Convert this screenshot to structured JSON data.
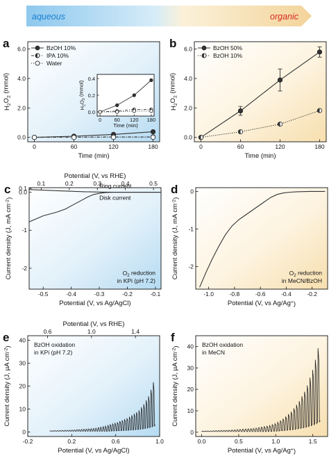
{
  "banner": {
    "left_label": "aqueous",
    "right_label": "organic"
  },
  "panels": [
    {
      "id": "a",
      "label": "a",
      "chart_data": {
        "type": "line",
        "xlabel": "Time (min)",
        "ylabel": "H2O2 (mmol)",
        "xlim": [
          -10,
          190
        ],
        "ylim": [
          -0.3,
          6.5
        ],
        "xticks": [
          0,
          60,
          120,
          180
        ],
        "yticks": [
          0.0,
          2.0,
          4.0,
          6.0
        ],
        "ytick_labels": [
          "0.0",
          "2.0",
          "4.0",
          "6.0"
        ],
        "legend_position": "top-left",
        "series": [
          {
            "name": "BzOH 10%",
            "x": [
              0,
              60,
              120,
              180
            ],
            "y": [
              0.0,
              0.08,
              0.2,
              0.38
            ],
            "marker": "filled",
            "line": "solid"
          },
          {
            "name": "IPA 10%",
            "x": [
              0,
              60,
              120,
              180
            ],
            "y": [
              0.0,
              0.01,
              0.03,
              0.03
            ],
            "marker": "half",
            "line": "dashdot"
          },
          {
            "name": "Water",
            "x": [
              0,
              60,
              120,
              180
            ],
            "y": [
              0.0,
              0.0,
              0.01,
              0.01
            ],
            "marker": "open",
            "line": "dotted"
          }
        ],
        "inset": {
          "xlabel": "Time (min)",
          "ylabel": "H2O2 (mmol)",
          "xlim": [
            -10,
            190
          ],
          "ylim": [
            -0.05,
            0.45
          ],
          "xticks": [
            0,
            60,
            120,
            180
          ],
          "yticks": [
            0.0,
            0.2,
            0.4
          ],
          "ytick_labels": [
            "0.0",
            "0.2",
            "0.4"
          ]
        }
      }
    },
    {
      "id": "b",
      "label": "b",
      "chart_data": {
        "type": "line",
        "xlabel": "Time (min)",
        "ylabel": "H2O2 (mmol)",
        "xlim": [
          -10,
          190
        ],
        "ylim": [
          -0.3,
          6.5
        ],
        "xticks": [
          0,
          60,
          120,
          180
        ],
        "yticks": [
          0,
          2,
          4,
          6
        ],
        "ytick_labels": [
          "0.0",
          "2.0",
          "4.0",
          "6.0"
        ],
        "legend_position": "top-left",
        "series": [
          {
            "name": "BzOH 50%",
            "x": [
              0,
              60,
              120,
              180
            ],
            "y": [
              0.0,
              1.8,
              3.9,
              5.8
            ],
            "err": [
              0,
              0.3,
              0.75,
              0.35
            ],
            "marker": "filled",
            "line": "solid"
          },
          {
            "name": "BzOH 10%",
            "x": [
              0,
              60,
              120,
              180
            ],
            "y": [
              0.0,
              0.38,
              0.9,
              1.82
            ],
            "marker": "half",
            "line": "dotted"
          }
        ]
      }
    },
    {
      "id": "c",
      "label": "c",
      "chart_data": {
        "type": "line",
        "xlabel": "Potential (V, vs Ag/AgCl)",
        "top_xlabel": "Potential (V, vs RHE)",
        "ylabel": "Current density (J, mA cm-2)",
        "xlim": [
          -0.55,
          -0.08
        ],
        "ylim": [
          -2.55,
          0.12
        ],
        "xticks": [
          -0.5,
          -0.4,
          -0.3,
          -0.2,
          -0.1
        ],
        "xtick_labels": [
          "-0.5",
          "-0.4",
          "-0.3",
          "-0.2",
          "-0.1"
        ],
        "top_xticks": [
          0.1,
          0.2,
          0.3,
          0.4,
          0.5
        ],
        "top_xtick_labels": [
          "0.1",
          "0.2",
          "0.3",
          "0.4",
          "0.5"
        ],
        "yticks": [
          0.1,
          0.0,
          -1,
          -2
        ],
        "ytick_labels": [
          "0.1",
          "0.0",
          "-1",
          "-2"
        ],
        "series": [
          {
            "name": "Ring current",
            "x": [
              -0.55,
              -0.5,
              -0.45,
              -0.4,
              -0.35,
              -0.3,
              -0.25,
              -0.2,
              -0.15,
              -0.1,
              -0.08
            ],
            "y": [
              0.07,
              0.055,
              0.04,
              0.025,
              0.012,
              0.004,
              0.0,
              0.0,
              0.0,
              0.0,
              0.0
            ]
          },
          {
            "name": "Disk current",
            "x": [
              -0.55,
              -0.5,
              -0.45,
              -0.42,
              -0.4,
              -0.37,
              -0.34,
              -0.32,
              -0.3,
              -0.28,
              -0.25,
              -0.2,
              -0.15,
              -0.1,
              -0.08
            ],
            "y": [
              -0.78,
              -0.62,
              -0.52,
              -0.44,
              -0.36,
              -0.24,
              -0.12,
              -0.06,
              -0.03,
              -0.01,
              0.0,
              0.0,
              0.0,
              0.0,
              0.0
            ]
          }
        ],
        "annotation": [
          "O2 reduction",
          "in KPi (pH 7.2)"
        ]
      }
    },
    {
      "id": "d",
      "label": "d",
      "chart_data": {
        "type": "line",
        "xlabel": "Potential (V, vs Ag/Ag+)",
        "ylabel": "Current density (J, mA cm-2)",
        "xlim": [
          -1.1,
          -0.08
        ],
        "ylim": [
          -2.6,
          0.1
        ],
        "xticks": [
          -1.0,
          -0.8,
          -0.6,
          -0.4,
          -0.2
        ],
        "xtick_labels": [
          "-1.0",
          "-0.8",
          "-0.6",
          "-0.4",
          "-0.2"
        ],
        "yticks": [
          0,
          -1,
          -2
        ],
        "ytick_labels": [
          "0",
          "-1",
          "-2"
        ],
        "series": [
          {
            "name": "",
            "x": [
              -1.07,
              -1.02,
              -0.97,
              -0.92,
              -0.87,
              -0.82,
              -0.77,
              -0.72,
              -0.67,
              -0.62,
              -0.57,
              -0.52,
              -0.47,
              -0.42,
              -0.37,
              -0.32,
              -0.22,
              -0.1
            ],
            "y": [
              -2.55,
              -2.15,
              -1.78,
              -1.45,
              -1.15,
              -0.92,
              -0.76,
              -0.64,
              -0.52,
              -0.4,
              -0.28,
              -0.16,
              -0.08,
              -0.04,
              -0.02,
              -0.01,
              0.0,
              0.0
            ]
          }
        ],
        "annotation": [
          "O2 reduction",
          "in MeCN/BzOH"
        ]
      }
    },
    {
      "id": "e",
      "label": "e",
      "chart_data": {
        "type": "line",
        "xlabel": "Potential (V, vs Ag/AgCl)",
        "top_xlabel": "Potential (V, vs RHE)",
        "ylabel": "Current density (J, µA cm-2)",
        "xlim": [
          -0.2,
          1.0
        ],
        "ylim": [
          -2,
          42
        ],
        "xticks": [
          -0.2,
          0.2,
          0.6,
          1.0
        ],
        "xtick_labels": [
          "-0.2",
          "0.2",
          "0.6",
          "1.0"
        ],
        "top_xticks": [
          0.6,
          1.0,
          1.4
        ],
        "top_xtick_labels": [
          "0.6",
          "1.0",
          "1.4"
        ],
        "yticks": [
          0,
          10,
          20,
          30,
          40
        ],
        "ytick_labels": [
          "0",
          "10",
          "20",
          "30",
          "40"
        ],
        "series": [
          {
            "name": "",
            "x": [
              0.0,
              0.2,
              0.4,
              0.5,
              0.6,
              0.7,
              0.8,
              0.85,
              0.9,
              0.94,
              0.96
            ],
            "y": [
              0.5,
              0.8,
              1.5,
              2.5,
              4.0,
              6.0,
              9.0,
              12.0,
              16.0,
              22.0,
              26.0
            ],
            "style": "chopped"
          }
        ],
        "annotation": [
          "BzOH oxidation",
          "in KPi (pH 7.2)"
        ]
      }
    },
    {
      "id": "f",
      "label": "f",
      "chart_data": {
        "type": "line",
        "xlabel": "Potential (V, vs Ag/Ag+)",
        "ylabel": "Current density (J, µA cm-2)",
        "xlim": [
          -0.08,
          1.7
        ],
        "ylim": [
          -2,
          45
        ],
        "xticks": [
          0.0,
          0.5,
          1.0,
          1.5
        ],
        "xtick_labels": [
          "0.0",
          "0.5",
          "1.0",
          "1.5"
        ],
        "yticks": [
          0,
          10,
          20,
          30,
          40
        ],
        "ytick_labels": [
          "0",
          "10",
          "20",
          "30",
          "40"
        ],
        "series": [
          {
            "name": "",
            "x": [
              0.0,
              0.4,
              0.7,
              0.9,
              1.0,
              1.1,
              1.2,
              1.3,
              1.4,
              1.5,
              1.55,
              1.6
            ],
            "y": [
              0.5,
              1.0,
              1.8,
              3.0,
              4.2,
              6.5,
              9.5,
              14.0,
              20.0,
              30.0,
              37.0,
              45.0
            ],
            "style": "chopped"
          }
        ],
        "annotation": [
          "BzOH oxidation",
          "in MeCN"
        ]
      }
    }
  ]
}
